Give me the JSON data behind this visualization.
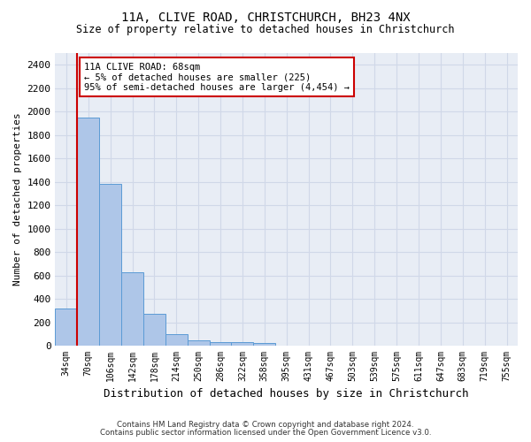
{
  "title": "11A, CLIVE ROAD, CHRISTCHURCH, BH23 4NX",
  "subtitle": "Size of property relative to detached houses in Christchurch",
  "xlabel": "Distribution of detached houses by size in Christchurch",
  "ylabel": "Number of detached properties",
  "bar_values": [
    315,
    1950,
    1380,
    630,
    275,
    100,
    48,
    32,
    28,
    22,
    0,
    0,
    0,
    0,
    0,
    0,
    0,
    0,
    0,
    0,
    0
  ],
  "bar_labels": [
    "34sqm",
    "70sqm",
    "106sqm",
    "142sqm",
    "178sqm",
    "214sqm",
    "250sqm",
    "286sqm",
    "322sqm",
    "358sqm",
    "395sqm",
    "431sqm",
    "467sqm",
    "503sqm",
    "539sqm",
    "575sqm",
    "611sqm",
    "647sqm",
    "683sqm",
    "719sqm",
    "755sqm"
  ],
  "bar_color": "#aec6e8",
  "bar_edge_color": "#5b9bd5",
  "grid_color": "#d0d8e8",
  "background_color": "#e8edf5",
  "vline_x_index": 1,
  "vline_color": "#cc0000",
  "annotation_text": "11A CLIVE ROAD: 68sqm\n← 5% of detached houses are smaller (225)\n95% of semi-detached houses are larger (4,454) →",
  "annotation_box_color": "#ffffff",
  "annotation_box_edge": "#cc0000",
  "ylim": [
    0,
    2500
  ],
  "yticks": [
    0,
    200,
    400,
    600,
    800,
    1000,
    1200,
    1400,
    1600,
    1800,
    2000,
    2200,
    2400
  ],
  "footer1": "Contains HM Land Registry data © Crown copyright and database right 2024.",
  "footer2": "Contains public sector information licensed under the Open Government Licence v3.0.",
  "figsize": [
    6.0,
    5.0
  ],
  "dpi": 100
}
